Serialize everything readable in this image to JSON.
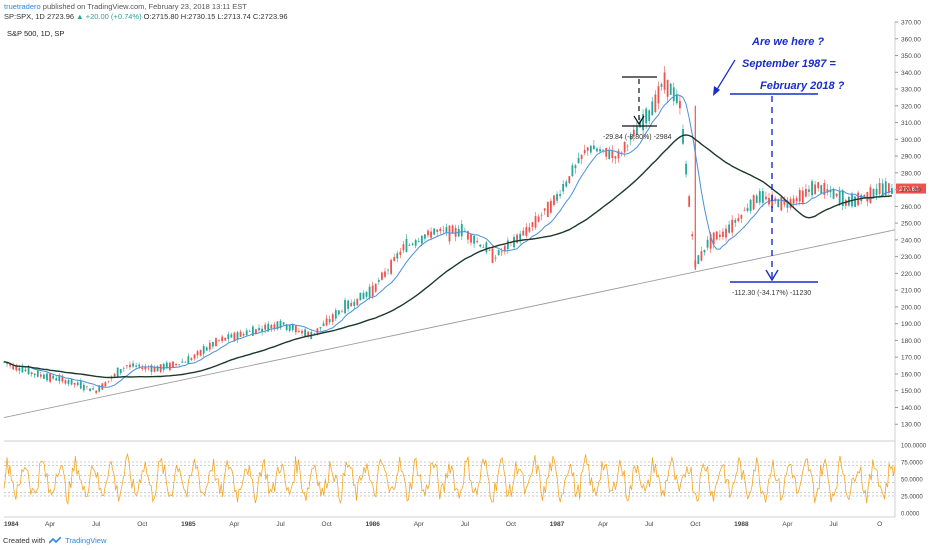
{
  "header": {
    "author": "truetradero",
    "published": "published on TradingView.com, February 23, 2018 13:11 EST",
    "symbol_line": "SP:SPX, 1D",
    "last": "2723.96",
    "change": "+20.00 (+0.74%)",
    "ohlc": "O:2715.80 H:2730.15 L:2713.74 C:2723.96"
  },
  "symbol_label": "S&P 500, 1D, SP",
  "footer": {
    "created_with": "Created with",
    "brand": "TradingView"
  },
  "colors": {
    "candle_up": "#26a69a",
    "candle_down": "#ef5350",
    "ma_fast": "#4a90d9",
    "ma_slow": "#1b3a2a",
    "trendline": "#9e9e9e",
    "oscillator": "#f5a623",
    "annotation": "#1a2dc8",
    "price_badge": "#ef5350"
  },
  "chart_data": {
    "type": "line",
    "title": "S&P 500, 1D, SP",
    "ylim": [
      120,
      370
    ],
    "price_ticks": [
      130,
      140,
      150,
      160,
      170,
      180,
      190,
      200,
      210,
      220,
      230,
      240,
      250,
      260,
      270,
      280,
      290,
      300,
      310,
      320,
      330,
      340,
      350,
      360,
      370
    ],
    "x_tick_labels": [
      "1984",
      "Apr",
      "Jul",
      "Oct",
      "1985",
      "Apr",
      "Jul",
      "Oct",
      "1986",
      "Apr",
      "Jul",
      "Oct",
      "1987",
      "Apr",
      "Jul",
      "Oct",
      "1988",
      "Apr",
      "Jul",
      "O"
    ],
    "last_price_label": "270.62",
    "series": [
      {
        "x": [
          "1984-01",
          "1984-03",
          "1984-05",
          "1984-07",
          "1984-09",
          "1984-11",
          "1985-01",
          "1985-03",
          "1985-05",
          "1985-07",
          "1985-09",
          "1985-11",
          "1986-01",
          "1986-03",
          "1986-05",
          "1986-07",
          "1986-09",
          "1986-11",
          "1987-01",
          "1987-03",
          "1987-05",
          "1987-07",
          "1987-08",
          "1987-09",
          "1987-10",
          "1987-11",
          "1987-12",
          "1988-02",
          "1988-04",
          "1988-06",
          "1988-08",
          "1988-10"
        ],
        "values": [
          167,
          160,
          156,
          150,
          165,
          163,
          168,
          180,
          185,
          190,
          183,
          198,
          210,
          235,
          245,
          245,
          230,
          245,
          265,
          295,
          290,
          315,
          335,
          320,
          225,
          240,
          245,
          265,
          262,
          272,
          262,
          270
        ]
      }
    ],
    "annotations": [
      {
        "text": "Are we here ?"
      },
      {
        "text": "September 1987 ="
      },
      {
        "text": "February 2018 ?"
      },
      {
        "text": "-29.84 (-8.80%) -2984"
      },
      {
        "text": "-112.30 (-34.17%) -11230"
      }
    ],
    "oscillator": {
      "ylim": [
        0,
        100
      ],
      "tick_labels": [
        "100.0000",
        "75.0000",
        "50.0000",
        "25.0000",
        "0.0000"
      ]
    }
  }
}
